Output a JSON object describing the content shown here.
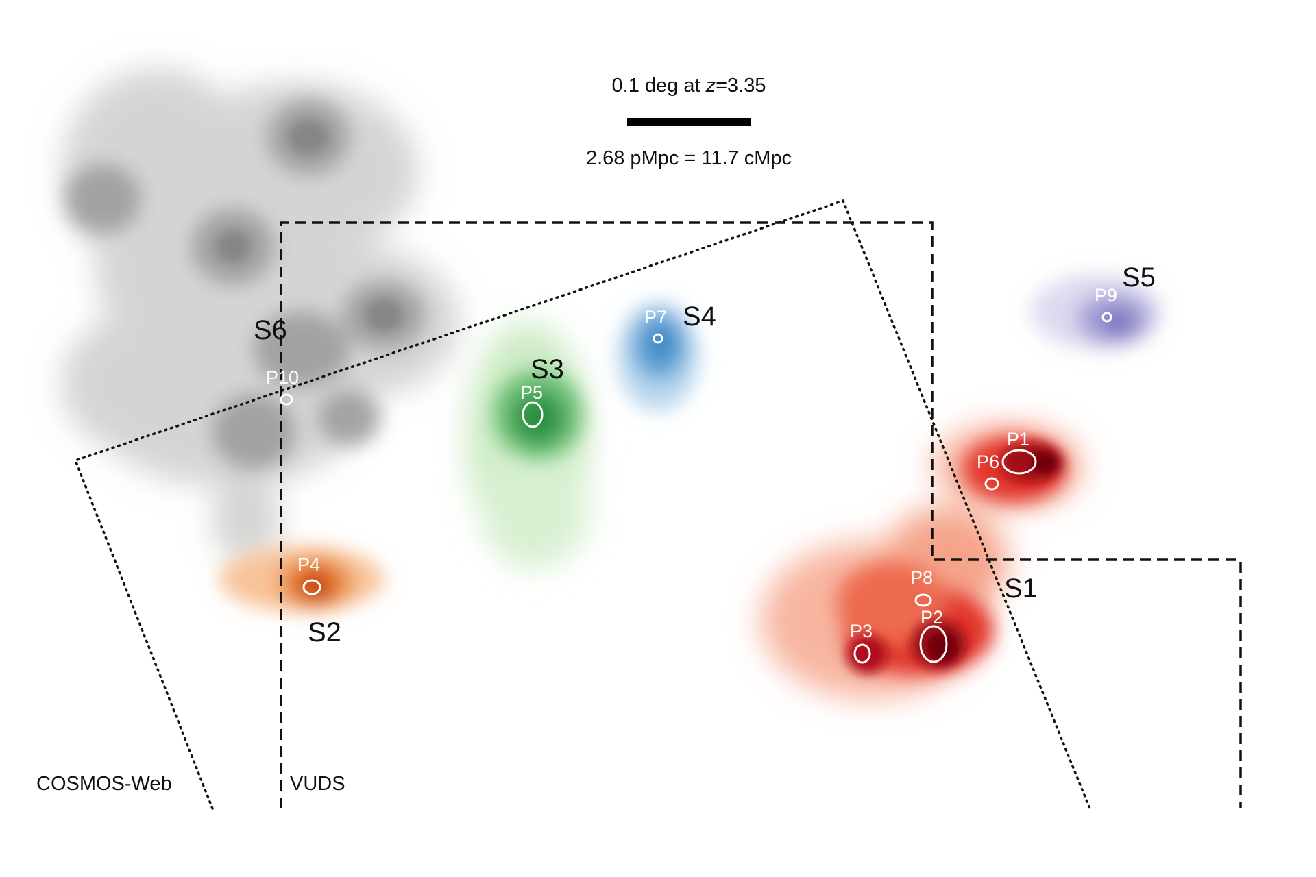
{
  "scale_bar": {
    "top_label": "0.1 deg at z=3.35",
    "top_label_prefix": "0.1 deg at ",
    "top_label_var": "z",
    "top_label_suffix": "=3.35",
    "bottom_label": "2.68 pMpc = 11.7 cMpc"
  },
  "survey_labels": {
    "cosmos": "COSMOS-Web",
    "vuds": "VUDS"
  },
  "structures": [
    {
      "id": "S1",
      "label": "S1",
      "color": "#c8101a"
    },
    {
      "id": "S2",
      "label": "S2",
      "color": "#e0600e"
    },
    {
      "id": "S3",
      "label": "S3",
      "color": "#2e9a45"
    },
    {
      "id": "S4",
      "label": "S4",
      "color": "#3f8fcf"
    },
    {
      "id": "S5",
      "label": "S5",
      "color": "#7a74c0"
    },
    {
      "id": "S6",
      "label": "S6",
      "color": "#555555"
    }
  ],
  "peaks": [
    {
      "id": "P1",
      "label": "P1"
    },
    {
      "id": "P2",
      "label": "P2"
    },
    {
      "id": "P3",
      "label": "P3"
    },
    {
      "id": "P4",
      "label": "P4"
    },
    {
      "id": "P5",
      "label": "P5"
    },
    {
      "id": "P6",
      "label": "P6"
    },
    {
      "id": "P7",
      "label": "P7"
    },
    {
      "id": "P8",
      "label": "P8"
    },
    {
      "id": "P9",
      "label": "P9"
    },
    {
      "id": "P10",
      "label": "P10"
    }
  ]
}
